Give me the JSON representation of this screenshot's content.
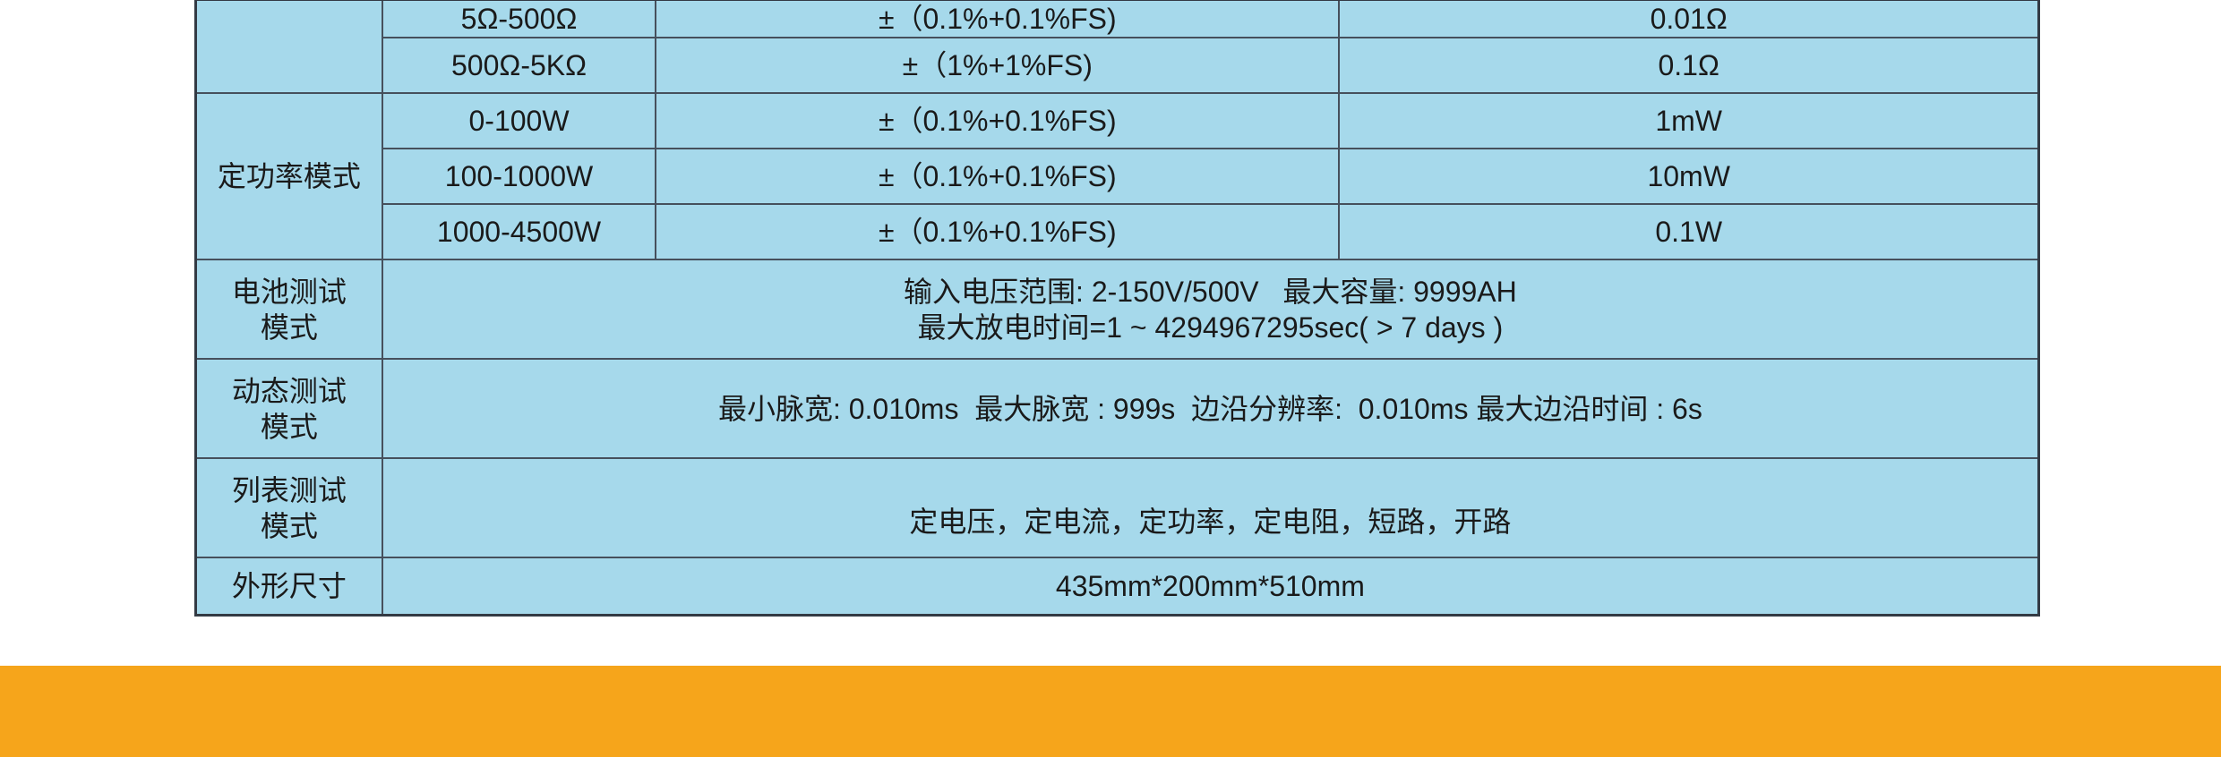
{
  "colors": {
    "table_bg": "#a6d9eb",
    "band": "#f6a51b",
    "border": "#333a44"
  },
  "resistance_rows": [
    {
      "range": "5Ω-500Ω",
      "accuracy": "±（0.1%+0.1%FS)",
      "resolution": "0.01Ω"
    },
    {
      "range": "500Ω-5KΩ",
      "accuracy": "±（1%+1%FS)",
      "resolution": "0.1Ω"
    }
  ],
  "power_mode": {
    "label": "定功率模式",
    "rows": [
      {
        "range": "0-100W",
        "accuracy": "±（0.1%+0.1%FS)",
        "resolution": "1mW"
      },
      {
        "range": "100-1000W",
        "accuracy": "±（0.1%+0.1%FS)",
        "resolution": "10mW"
      },
      {
        "range": "1000-4500W",
        "accuracy": "±（0.1%+0.1%FS)",
        "resolution": "0.1W"
      }
    ]
  },
  "battery": {
    "label_line1": "电池测试",
    "label_line2": "模式",
    "line1": "输入电压范围: 2-150V/500V   最大容量: 9999AH",
    "line2": "最大放电时间=1 ~ 4294967295sec( > 7 days )"
  },
  "dynamic": {
    "label_line1": "动态测试",
    "label_line2": "模式",
    "value": "最小脉宽: 0.010ms  最大脉宽 : 999s  边沿分辨率:  0.010ms 最大边沿时间 : 6s"
  },
  "list": {
    "label_line1": "列表测试",
    "label_line2": "模式",
    "value": "定电压，定电流，定功率，定电阻，短路，开路"
  },
  "dimensions": {
    "label": "外形尺寸",
    "value": "435mm*200mm*510mm"
  }
}
